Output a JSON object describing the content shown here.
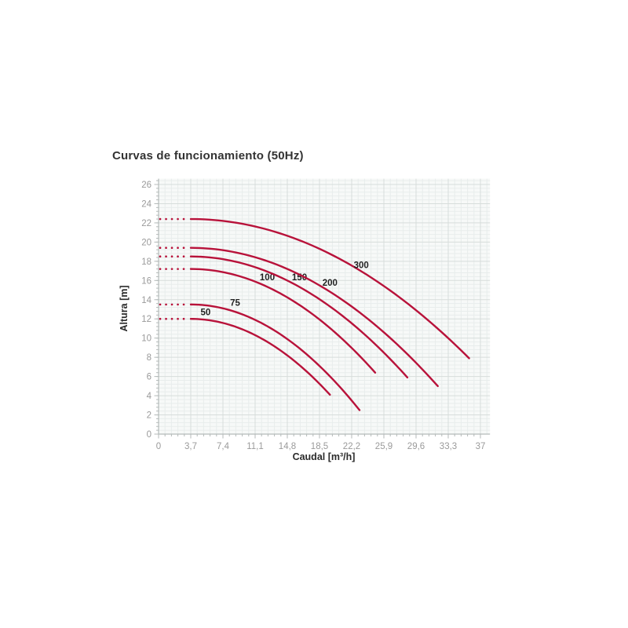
{
  "header": {
    "title": "Curvas de funcionamiento (50Hz)"
  },
  "chart_data": {
    "type": "line",
    "title": "Curvas de funcionamiento (50Hz)",
    "xlabel": "Caudal [m³/h]",
    "ylabel": "Altura [m]",
    "xlim": [
      0,
      38.1
    ],
    "ylim": [
      0,
      26.6
    ],
    "x_tick_values": [
      0,
      3.7,
      7.4,
      11.1,
      14.8,
      18.5,
      22.2,
      25.9,
      29.6,
      33.3,
      37
    ],
    "x_tick_labels": [
      "0",
      "3,7",
      "7,4",
      "11,1",
      "14,8",
      "18,5",
      "22,2",
      "25,9",
      "29,6",
      "33,3",
      "37"
    ],
    "y_tick_values": [
      0,
      2,
      4,
      6,
      8,
      10,
      12,
      14,
      16,
      18,
      20,
      22,
      24,
      26
    ],
    "y_tick_labels": [
      "0",
      "2",
      "4",
      "6",
      "8",
      "10",
      "12",
      "14",
      "16",
      "18",
      "20",
      "22",
      "24",
      "26"
    ],
    "grid": {
      "major": true,
      "minor": true,
      "x_minor_step": 0.74,
      "y_minor_step": 0.4
    },
    "legend_position": "none",
    "colors": {
      "curve": "#b8123a",
      "major_grid": "#d7dddb",
      "minor_grid": "#e8edec",
      "plot_background": "#f7f9f8",
      "axis_line": "#b4bab9",
      "tick_text": "#9a9a9a",
      "curve_label_text": "#222222"
    },
    "series": [
      {
        "name": "50",
        "shutoff_head_m": 12.0,
        "dotted_from_q": 0,
        "solid_from_q": 3.7,
        "q_end": 19.7,
        "h_end": 4.1,
        "label_at": [
          5.4,
          12.7
        ],
        "points": [
          [
            0,
            12.0
          ],
          [
            3.7,
            12.0
          ],
          [
            7.4,
            11.6
          ],
          [
            11.1,
            10.3
          ],
          [
            14.8,
            8.2
          ],
          [
            18.5,
            5.2
          ],
          [
            19.7,
            4.1
          ]
        ]
      },
      {
        "name": "75",
        "shutoff_head_m": 13.5,
        "dotted_from_q": 0,
        "solid_from_q": 3.7,
        "q_end": 23.1,
        "h_end": 2.5,
        "label_at": [
          8.8,
          13.7
        ],
        "points": [
          [
            0,
            13.5
          ],
          [
            3.7,
            13.5
          ],
          [
            7.4,
            13.1
          ],
          [
            11.1,
            11.9
          ],
          [
            14.8,
            9.9
          ],
          [
            18.5,
            7.1
          ],
          [
            22.2,
            3.5
          ],
          [
            23.1,
            2.5
          ]
        ]
      },
      {
        "name": "100",
        "shutoff_head_m": 17.2,
        "dotted_from_q": 0,
        "solid_from_q": 3.7,
        "q_end": 24.9,
        "h_end": 6.4,
        "label_at": [
          12.5,
          16.35
        ],
        "points": [
          [
            0,
            17.2
          ],
          [
            3.7,
            17.2
          ],
          [
            7.4,
            16.9
          ],
          [
            11.1,
            15.9
          ],
          [
            14.8,
            14.2
          ],
          [
            18.5,
            11.9
          ],
          [
            22.2,
            9.0
          ],
          [
            24.9,
            6.4
          ]
        ]
      },
      {
        "name": "150",
        "shutoff_head_m": 18.5,
        "dotted_from_q": 0,
        "solid_from_q": 3.7,
        "q_end": 28.6,
        "h_end": 5.9,
        "label_at": [
          16.2,
          16.35
        ],
        "points": [
          [
            0,
            18.5
          ],
          [
            3.7,
            18.5
          ],
          [
            7.4,
            18.2
          ],
          [
            11.1,
            17.4
          ],
          [
            14.8,
            16.0
          ],
          [
            18.5,
            14.1
          ],
          [
            22.2,
            11.6
          ],
          [
            25.9,
            8.5
          ],
          [
            28.6,
            5.9
          ]
        ]
      },
      {
        "name": "200",
        "shutoff_head_m": 19.4,
        "dotted_from_q": 0,
        "solid_from_q": 3.7,
        "q_end": 32.1,
        "h_end": 5.0,
        "label_at": [
          19.7,
          15.8
        ],
        "points": [
          [
            0,
            19.4
          ],
          [
            3.7,
            19.4
          ],
          [
            7.4,
            19.2
          ],
          [
            11.1,
            18.4
          ],
          [
            14.8,
            17.2
          ],
          [
            18.5,
            15.5
          ],
          [
            22.2,
            13.3
          ],
          [
            25.9,
            10.6
          ],
          [
            29.6,
            7.4
          ],
          [
            32.1,
            5.0
          ]
        ]
      },
      {
        "name": "300",
        "shutoff_head_m": 22.4,
        "dotted_from_q": 0,
        "solid_from_q": 3.7,
        "q_end": 35.7,
        "h_end": 7.9,
        "label_at": [
          23.3,
          17.6
        ],
        "points": [
          [
            0,
            22.4
          ],
          [
            3.7,
            22.4
          ],
          [
            7.4,
            22.2
          ],
          [
            11.1,
            21.6
          ],
          [
            14.8,
            20.7
          ],
          [
            18.5,
            19.3
          ],
          [
            22.2,
            17.6
          ],
          [
            25.9,
            15.4
          ],
          [
            29.6,
            12.9
          ],
          [
            33.3,
            10.0
          ],
          [
            35.7,
            7.9
          ]
        ]
      }
    ]
  }
}
